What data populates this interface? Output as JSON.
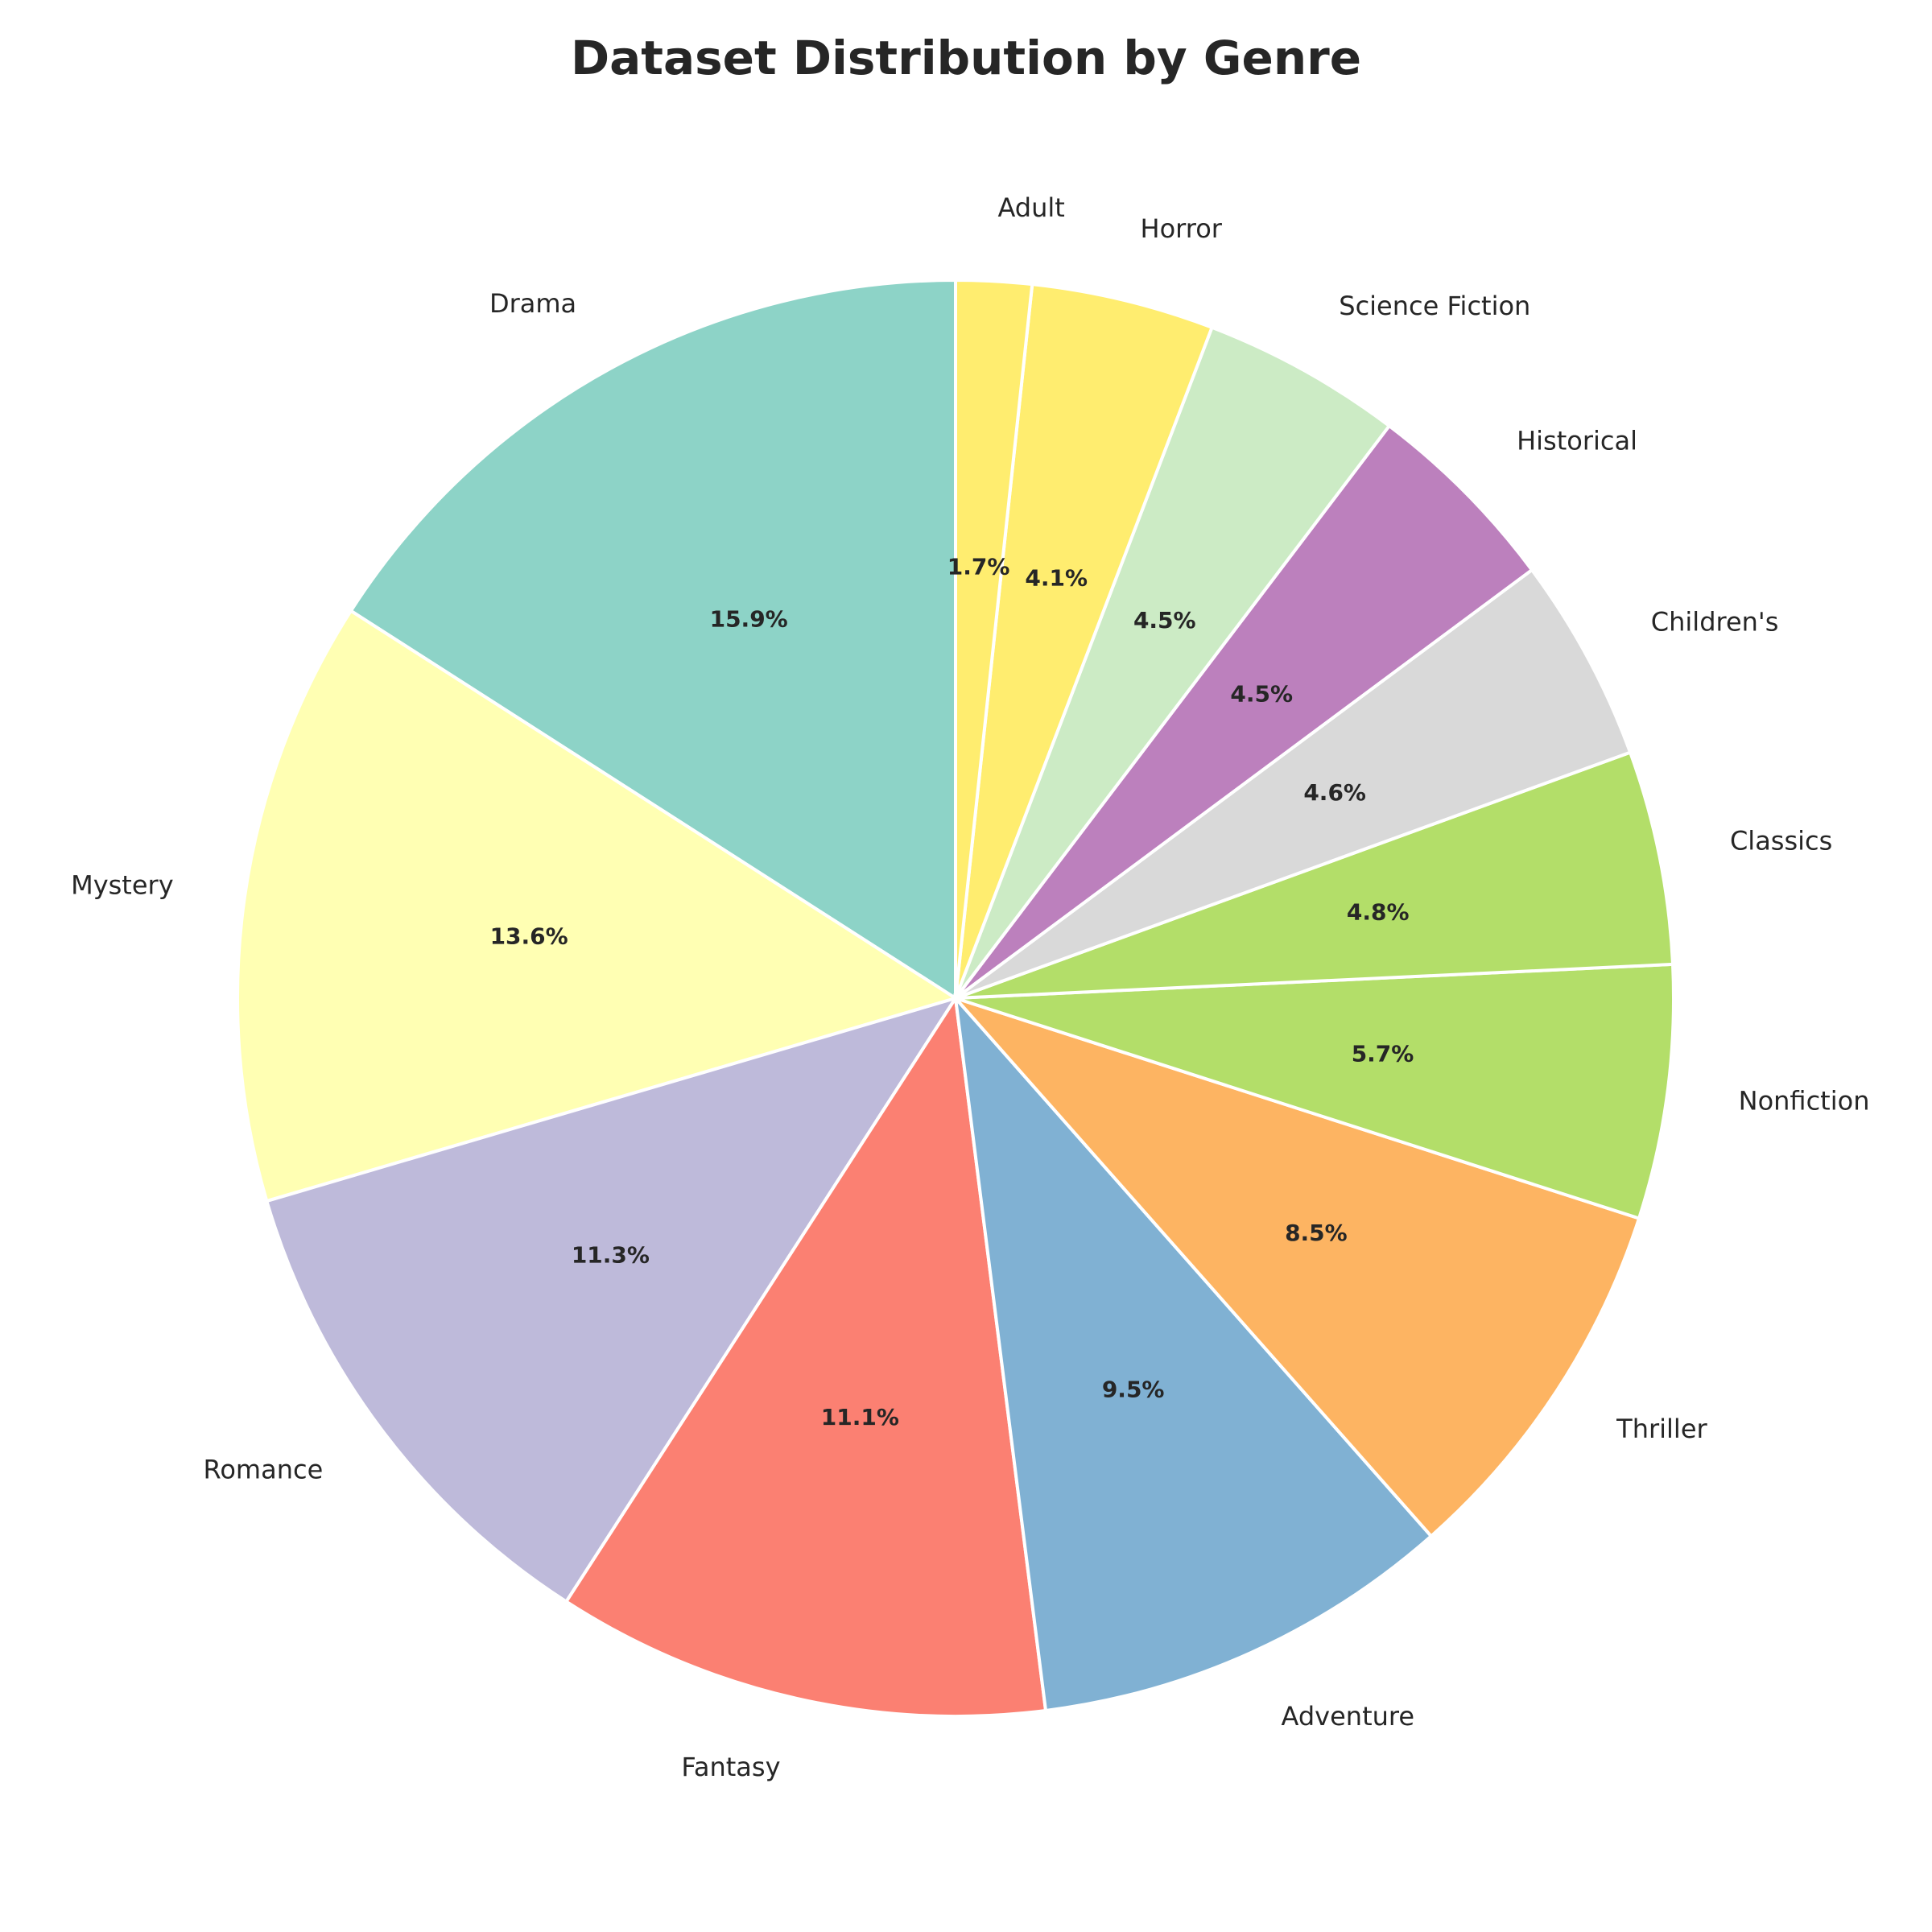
{
  "chart_data": {
    "type": "pie",
    "title": "Dataset Distribution by Genre",
    "start_angle_deg": 90,
    "direction": "counterclockwise",
    "slices": [
      {
        "label": "Drama",
        "value": 15.9,
        "pct_label": "15.9%",
        "color": "#8dd3c7"
      },
      {
        "label": "Mystery",
        "value": 13.6,
        "pct_label": "13.6%",
        "color": "#ffffb3"
      },
      {
        "label": "Romance",
        "value": 11.3,
        "pct_label": "11.3%",
        "color": "#bebada"
      },
      {
        "label": "Fantasy",
        "value": 11.1,
        "pct_label": "11.1%",
        "color": "#fb8072"
      },
      {
        "label": "Adventure",
        "value": 9.5,
        "pct_label": "9.5%",
        "color": "#80b1d3"
      },
      {
        "label": "Thriller",
        "value": 8.5,
        "pct_label": "8.5%",
        "color": "#fdb462"
      },
      {
        "label": "Nonfiction",
        "value": 5.7,
        "pct_label": "5.7%",
        "color": "#b3de69"
      },
      {
        "label": "Classics",
        "value": 4.8,
        "pct_label": "4.8%",
        "color": "#b3de69"
      },
      {
        "label": "Children's",
        "value": 4.6,
        "pct_label": "4.6%",
        "color": "#d9d9d9"
      },
      {
        "label": "Historical",
        "value": 4.5,
        "pct_label": "4.5%",
        "color": "#bc80bd"
      },
      {
        "label": "Science Fiction",
        "value": 4.5,
        "pct_label": "4.5%",
        "color": "#ccebc5"
      },
      {
        "label": "Horror",
        "value": 4.1,
        "pct_label": "4.1%",
        "color": "#ffed6f"
      },
      {
        "label": "Adult",
        "value": 1.7,
        "pct_label": "1.7%",
        "color": "#ffed6f"
      }
    ]
  }
}
